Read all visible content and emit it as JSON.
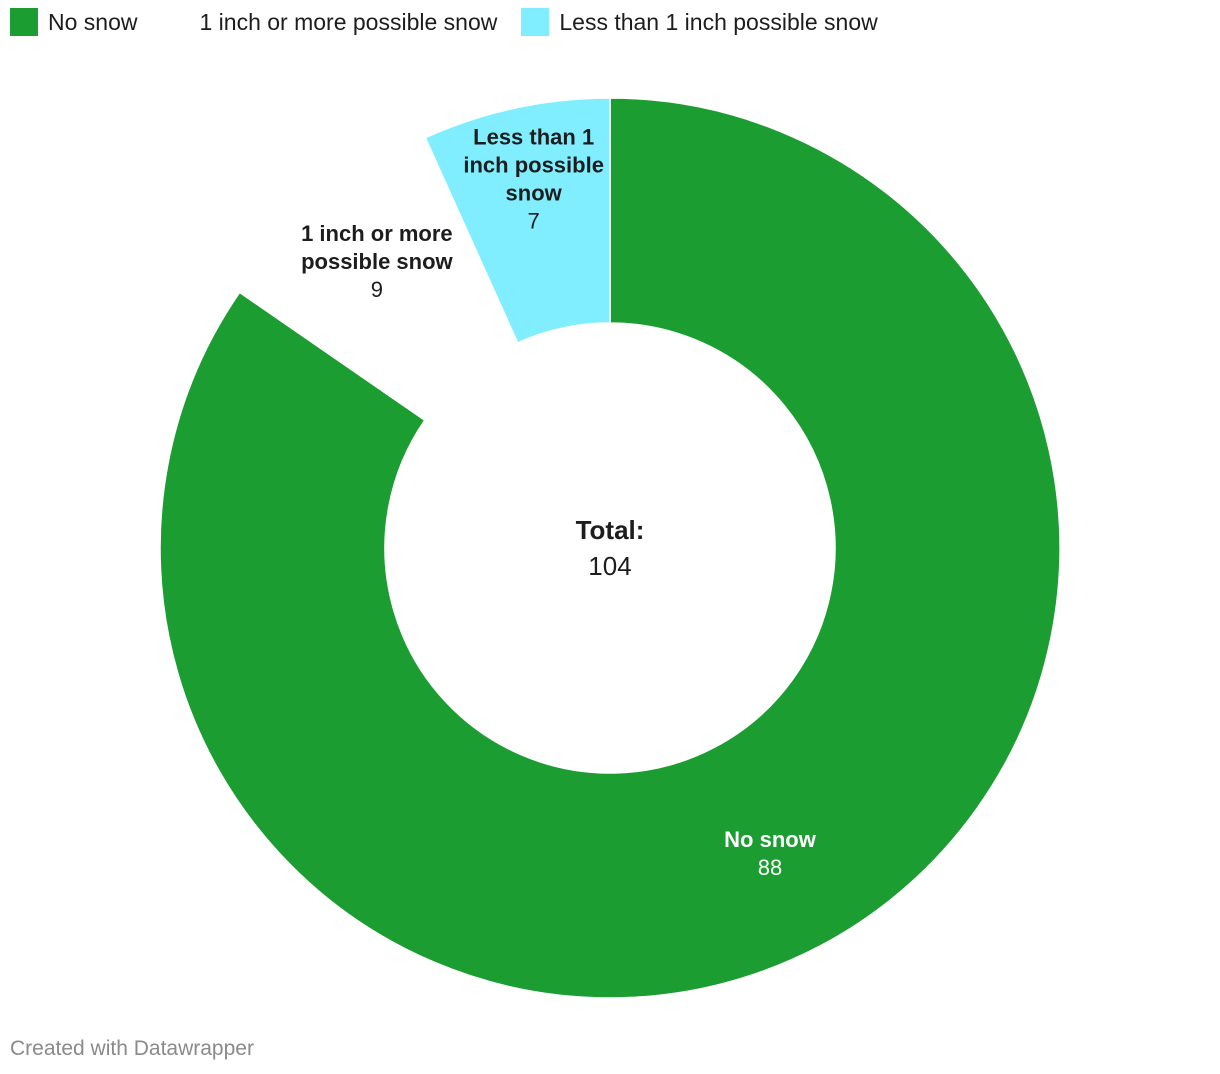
{
  "chart_data": {
    "type": "donut",
    "categories": [
      "No snow",
      "1 inch or more possible snow",
      "Less than 1 inch possible snow"
    ],
    "values": [
      88,
      9,
      7
    ],
    "colors": [
      "#1c9d31",
      "#ffffff",
      "#80eefe"
    ],
    "label_colors": [
      "#ffffff",
      "#1d1d1d",
      "#1d1d1d"
    ],
    "center_label": "Total:",
    "center_value": "104",
    "legend_placement": "top-left"
  },
  "legend": [
    {
      "label": "No snow",
      "color": "#1c9d31"
    },
    {
      "label": "1 inch or more possible snow",
      "color": "#ffffff"
    },
    {
      "label": "Less than 1 inch possible snow",
      "color": "#80eefe"
    }
  ],
  "footer": {
    "credit": "Created with Datawrapper"
  }
}
